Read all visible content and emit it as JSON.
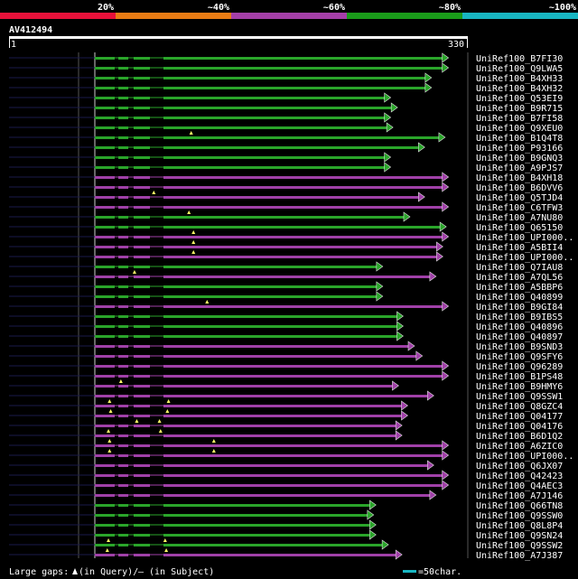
{
  "identity_scale": {
    "labels": [
      "20%",
      "~40%",
      "~60%",
      "~80%",
      "~100%"
    ],
    "colors": [
      "#e8113a",
      "#ea7c14",
      "#a53fa8",
      "#1a9c1a",
      "#18b6c2"
    ]
  },
  "query": {
    "id": "AV412494",
    "start": "1",
    "end": "330",
    "length": 330
  },
  "colors": {
    "green": "#2aa52a",
    "purple": "#a040a8",
    "yellow": "#ffff66",
    "scale_bar": "#18b6c2"
  },
  "hits": [
    {
      "name": "UniRef100_B7FI30",
      "color": "green",
      "end": 313,
      "markers": []
    },
    {
      "name": "UniRef100_Q9LWA5",
      "color": "green",
      "end": 313,
      "markers": []
    },
    {
      "name": "UniRef100_B4XH33",
      "color": "green",
      "end": 298,
      "markers": []
    },
    {
      "name": "UniRef100_B4XH32",
      "color": "green",
      "end": 298,
      "markers": []
    },
    {
      "name": "UniRef100_Q53EI9",
      "color": "green",
      "end": 262,
      "markers": []
    },
    {
      "name": "UniRef100_B9R715",
      "color": "green",
      "end": 268,
      "markers": []
    },
    {
      "name": "UniRef100_B7FI58",
      "color": "green",
      "end": 262,
      "markers": []
    },
    {
      "name": "UniRef100_Q9XEU0",
      "color": "green",
      "end": 264,
      "markers": []
    },
    {
      "name": "UniRef100_B1Q4T8",
      "color": "green",
      "end": 310,
      "markers": [
        86
      ]
    },
    {
      "name": "UniRef100_P93166",
      "color": "green",
      "end": 292,
      "markers": []
    },
    {
      "name": "UniRef100_B9GNQ3",
      "color": "green",
      "end": 262,
      "markers": []
    },
    {
      "name": "UniRef100_A9PJS7",
      "color": "green",
      "end": 262,
      "markers": []
    },
    {
      "name": "UniRef100_B4XH18",
      "color": "purple",
      "end": 313,
      "markers": []
    },
    {
      "name": "UniRef100_B6DVV6",
      "color": "purple",
      "end": 313,
      "markers": []
    },
    {
      "name": "UniRef100_Q5TJD4",
      "color": "purple",
      "end": 292,
      "markers": [
        53
      ]
    },
    {
      "name": "UniRef100_C6TFW3",
      "color": "purple",
      "end": 313,
      "markers": []
    },
    {
      "name": "UniRef100_A7NU80",
      "color": "green",
      "end": 279,
      "markers": [
        84
      ]
    },
    {
      "name": "UniRef100_Q65150",
      "color": "green",
      "end": 311,
      "markers": []
    },
    {
      "name": "UniRef100_UPI000..",
      "color": "purple",
      "end": 313,
      "markers": [
        88
      ]
    },
    {
      "name": "UniRef100_A5BII4",
      "color": "purple",
      "end": 308,
      "markers": [
        88
      ]
    },
    {
      "name": "UniRef100_UPI000..",
      "color": "purple",
      "end": 308,
      "markers": [
        88
      ]
    },
    {
      "name": "UniRef100_Q7IAU8",
      "color": "green",
      "end": 255,
      "markers": []
    },
    {
      "name": "UniRef100_A7QL56",
      "color": "purple",
      "end": 302,
      "markers": [
        36
      ]
    },
    {
      "name": "UniRef100_A5BBP6",
      "color": "green",
      "end": 255,
      "markers": []
    },
    {
      "name": "UniRef100_Q40899",
      "color": "green",
      "end": 255,
      "markers": []
    },
    {
      "name": "UniRef100_B9GI84",
      "color": "purple",
      "end": 313,
      "markers": [
        100
      ]
    },
    {
      "name": "UniRef100_B9IBS5",
      "color": "green",
      "end": 273,
      "markers": []
    },
    {
      "name": "UniRef100_Q40896",
      "color": "green",
      "end": 273,
      "markers": []
    },
    {
      "name": "UniRef100_Q40897",
      "color": "green",
      "end": 273,
      "markers": []
    },
    {
      "name": "UniRef100_B9SND3",
      "color": "purple",
      "end": 283,
      "markers": []
    },
    {
      "name": "UniRef100_Q9SFY6",
      "color": "purple",
      "end": 290,
      "markers": []
    },
    {
      "name": "UniRef100_Q96289",
      "color": "purple",
      "end": 313,
      "markers": []
    },
    {
      "name": "UniRef100_B1PS48",
      "color": "purple",
      "end": 313,
      "markers": []
    },
    {
      "name": "UniRef100_B9HMY6",
      "color": "purple",
      "end": 269,
      "markers": [
        24
      ]
    },
    {
      "name": "UniRef100_Q9SSW1",
      "color": "purple",
      "end": 300,
      "markers": []
    },
    {
      "name": "UniRef100_Q8GZC4",
      "color": "purple",
      "end": 277,
      "markers": [
        14,
        66
      ]
    },
    {
      "name": "UniRef100_Q04177",
      "color": "purple",
      "end": 277,
      "markers": [
        15,
        65
      ]
    },
    {
      "name": "UniRef100_Q04176",
      "color": "purple",
      "end": 272,
      "markers": [
        38,
        58
      ]
    },
    {
      "name": "UniRef100_B6D1Q2",
      "color": "purple",
      "end": 272,
      "markers": [
        13,
        59
      ]
    },
    {
      "name": "UniRef100_A6ZIC0",
      "color": "purple",
      "end": 313,
      "markers": [
        14,
        106
      ]
    },
    {
      "name": "UniRef100_UPI000..",
      "color": "purple",
      "end": 313,
      "markers": [
        14,
        106
      ]
    },
    {
      "name": "UniRef100_Q6JX07",
      "color": "purple",
      "end": 300,
      "markers": []
    },
    {
      "name": "UniRef100_Q42423",
      "color": "purple",
      "end": 313,
      "markers": []
    },
    {
      "name": "UniRef100_Q4AEC3",
      "color": "purple",
      "end": 313,
      "markers": []
    },
    {
      "name": "UniRef100_A7J146",
      "color": "purple",
      "end": 302,
      "markers": []
    },
    {
      "name": "UniRef100_Q66TN8",
      "color": "green",
      "end": 249,
      "markers": []
    },
    {
      "name": "UniRef100_Q9SSW0",
      "color": "green",
      "end": 247,
      "markers": []
    },
    {
      "name": "UniRef100_Q8L8P4",
      "color": "green",
      "end": 249,
      "markers": []
    },
    {
      "name": "UniRef100_Q9SN24",
      "color": "green",
      "end": 249,
      "markers": []
    },
    {
      "name": "UniRef100_Q9SSW2",
      "color": "green",
      "end": 260,
      "markers": [
        13,
        63
      ]
    },
    {
      "name": "UniRef100_A7J387",
      "color": "purple",
      "end": 272,
      "markers": [
        12,
        64
      ]
    }
  ],
  "footer": {
    "gaps_label": "Large gaps:",
    "in_query": "(in Query)/",
    "dash": "—",
    "in_subject": "(in Subject)",
    "scale_label": "=50char."
  }
}
